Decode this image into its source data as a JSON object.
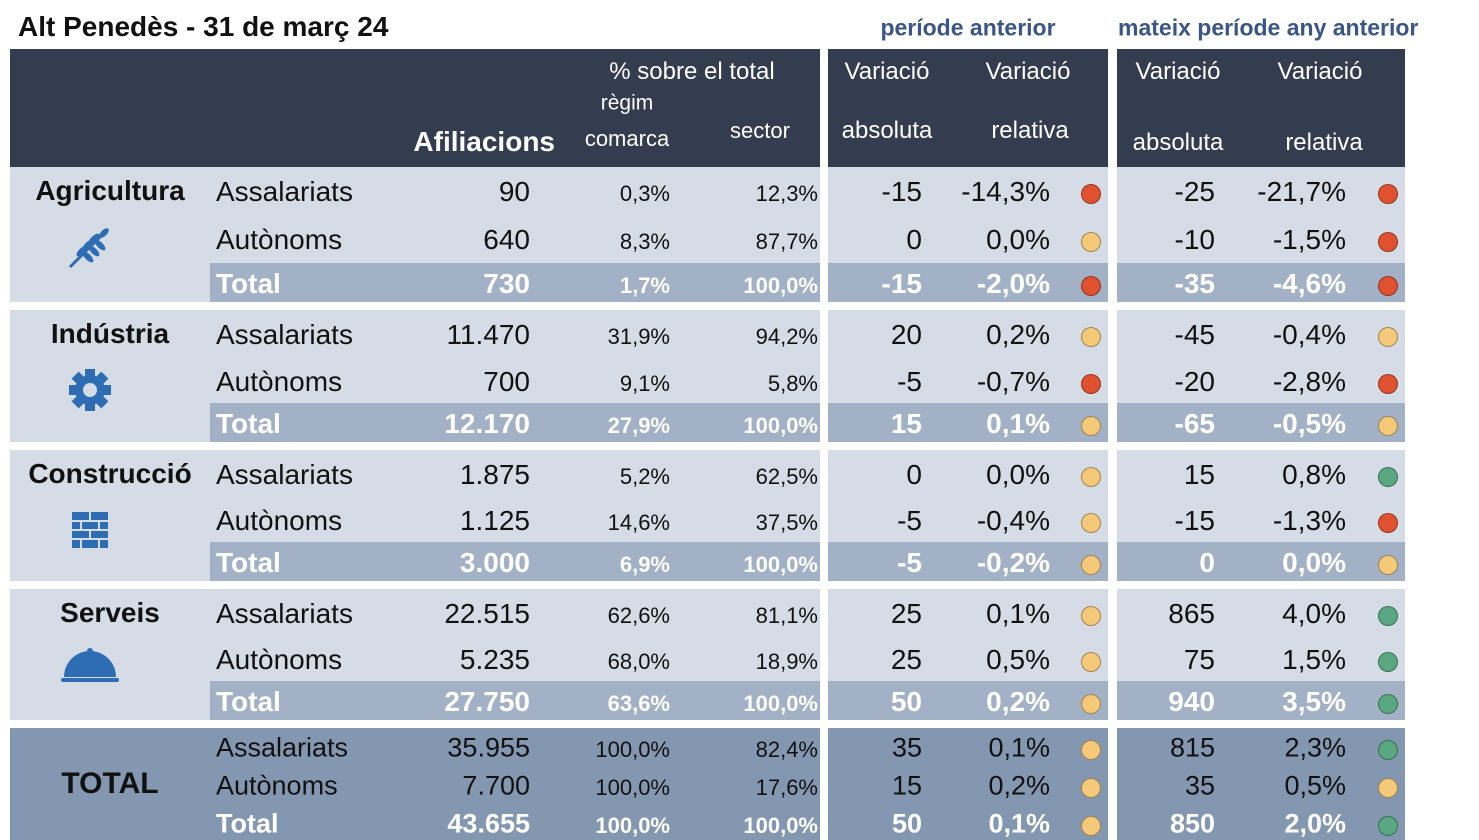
{
  "header": {
    "title": "Alt Penedès - 31 de març 24",
    "group1": "període anterior",
    "group2": "mateix període any anterior"
  },
  "columns": {
    "pct_total": "% sobre el total",
    "regim": "règim",
    "afiliacions": "Afiliacions",
    "comarca": "comarca",
    "sector": "sector",
    "var1a": "Variació",
    "abs1": "absoluta",
    "var1b": "Variació",
    "rel1": "relativa",
    "var2a": "Variació",
    "abs2": "absoluta",
    "var2b": "Variació",
    "rel2": "relativa"
  },
  "sections": [
    {
      "name": "Agricultura",
      "rows": [
        {
          "label": "Assalariats",
          "afiliacions": "90",
          "comarca": "0,3%",
          "sector": "12,3%",
          "abs1": "-15",
          "rel1": "-14,3%",
          "dot1": "#e0522f",
          "abs2": "-25",
          "rel2": "-21,7%",
          "dot2": "#e0522f"
        },
        {
          "label": "Autònoms",
          "afiliacions": "640",
          "comarca": "8,3%",
          "sector": "87,7%",
          "abs1": "0",
          "rel1": "0,0%",
          "dot1": "#f5c97a",
          "abs2": "-10",
          "rel2": "-1,5%",
          "dot2": "#e0522f"
        },
        {
          "label": "Total",
          "afiliacions": "730",
          "comarca": "1,7%",
          "sector": "100,0%",
          "abs1": "-15",
          "rel1": "-2,0%",
          "dot1": "#e0522f",
          "abs2": "-35",
          "rel2": "-4,6%",
          "dot2": "#e0522f"
        }
      ]
    },
    {
      "name": "Indústria",
      "rows": [
        {
          "label": "Assalariats",
          "afiliacions": "11.470",
          "comarca": "31,9%",
          "sector": "94,2%",
          "abs1": "20",
          "rel1": "0,2%",
          "dot1": "#f5c97a",
          "abs2": "-45",
          "rel2": "-0,4%",
          "dot2": "#f5c97a"
        },
        {
          "label": "Autònoms",
          "afiliacions": "700",
          "comarca": "9,1%",
          "sector": "5,8%",
          "abs1": "-5",
          "rel1": "-0,7%",
          "dot1": "#e0522f",
          "abs2": "-20",
          "rel2": "-2,8%",
          "dot2": "#e0522f"
        },
        {
          "label": "Total",
          "afiliacions": "12.170",
          "comarca": "27,9%",
          "sector": "100,0%",
          "abs1": "15",
          "rel1": "0,1%",
          "dot1": "#f5c97a",
          "abs2": "-65",
          "rel2": "-0,5%",
          "dot2": "#f5c97a"
        }
      ]
    },
    {
      "name": "Construcció",
      "rows": [
        {
          "label": "Assalariats",
          "afiliacions": "1.875",
          "comarca": "5,2%",
          "sector": "62,5%",
          "abs1": "0",
          "rel1": "0,0%",
          "dot1": "#f5c97a",
          "abs2": "15",
          "rel2": "0,8%",
          "dot2": "#5aa882"
        },
        {
          "label": "Autònoms",
          "afiliacions": "1.125",
          "comarca": "14,6%",
          "sector": "37,5%",
          "abs1": "-5",
          "rel1": "-0,4%",
          "dot1": "#f5c97a",
          "abs2": "-15",
          "rel2": "-1,3%",
          "dot2": "#e0522f"
        },
        {
          "label": "Total",
          "afiliacions": "3.000",
          "comarca": "6,9%",
          "sector": "100,0%",
          "abs1": "-5",
          "rel1": "-0,2%",
          "dot1": "#f5c97a",
          "abs2": "0",
          "rel2": "0,0%",
          "dot2": "#f5c97a"
        }
      ]
    },
    {
      "name": "Serveis",
      "rows": [
        {
          "label": "Assalariats",
          "afiliacions": "22.515",
          "comarca": "62,6%",
          "sector": "81,1%",
          "abs1": "25",
          "rel1": "0,1%",
          "dot1": "#f5c97a",
          "abs2": "865",
          "rel2": "4,0%",
          "dot2": "#5aa882"
        },
        {
          "label": "Autònoms",
          "afiliacions": "5.235",
          "comarca": "68,0%",
          "sector": "18,9%",
          "abs1": "25",
          "rel1": "0,5%",
          "dot1": "#f5c97a",
          "abs2": "75",
          "rel2": "1,5%",
          "dot2": "#5aa882"
        },
        {
          "label": "Total",
          "afiliacions": "27.750",
          "comarca": "63,6%",
          "sector": "100,0%",
          "abs1": "50",
          "rel1": "0,2%",
          "dot1": "#f5c97a",
          "abs2": "940",
          "rel2": "3,5%",
          "dot2": "#5aa882"
        }
      ]
    },
    {
      "name": "TOTAL",
      "rows": [
        {
          "label": "Assalariats",
          "afiliacions": "35.955",
          "comarca": "100,0%",
          "sector": "82,4%",
          "abs1": "35",
          "rel1": "0,1%",
          "dot1": "#f5c97a",
          "abs2": "815",
          "rel2": "2,3%",
          "dot2": "#5aa882"
        },
        {
          "label": "Autònoms",
          "afiliacions": "7.700",
          "comarca": "100,0%",
          "sector": "17,6%",
          "abs1": "15",
          "rel1": "0,2%",
          "dot1": "#f5c97a",
          "abs2": "35",
          "rel2": "0,5%",
          "dot2": "#f5c97a"
        },
        {
          "label": "Total",
          "afiliacions": "43.655",
          "comarca": "100,0%",
          "sector": "100,0%",
          "abs1": "50",
          "rel1": "0,1%",
          "dot1": "#f5c97a",
          "abs2": "850",
          "rel2": "2,0%",
          "dot2": "#5aa882"
        }
      ]
    }
  ]
}
